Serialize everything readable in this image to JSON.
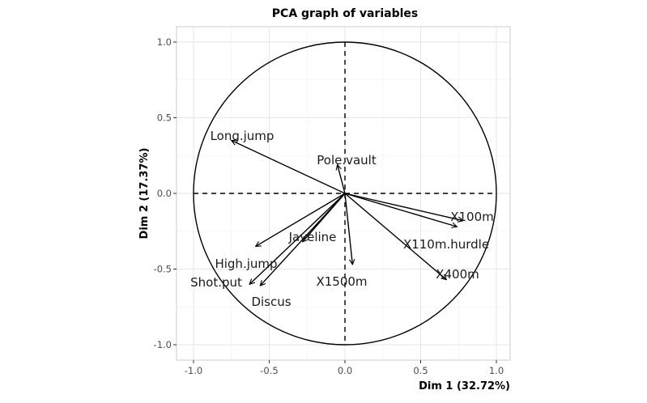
{
  "chart_data": {
    "type": "scatter",
    "title": "PCA graph of variables",
    "xlabel": "Dim 1 (32.72%)",
    "ylabel": "Dim 2 (17.37%)",
    "xlim": [
      -1.1,
      1.1
    ],
    "ylim": [
      -1.1,
      1.1
    ],
    "x_ticks": [
      "-1.0",
      "-0.5",
      "0.0",
      "0.5",
      "1.0"
    ],
    "y_ticks": [
      "1.0",
      "0.5",
      "0.0",
      "-0.5",
      "-1.0"
    ],
    "grid": true,
    "unit_circle": true,
    "variables": [
      {
        "name": "Long.jump",
        "x": -0.75,
        "y": 0.35
      },
      {
        "name": "Pole.vault",
        "x": -0.05,
        "y": 0.19
      },
      {
        "name": "X100m",
        "x": 0.78,
        "y": -0.18
      },
      {
        "name": "X110m.hurdle",
        "x": 0.74,
        "y": -0.22
      },
      {
        "name": "X400m",
        "x": 0.67,
        "y": -0.57
      },
      {
        "name": "X1500m",
        "x": 0.05,
        "y": -0.47
      },
      {
        "name": "Javeline",
        "x": -0.28,
        "y": -0.32
      },
      {
        "name": "High.jump",
        "x": -0.59,
        "y": -0.35
      },
      {
        "name": "Shot.put",
        "x": -0.63,
        "y": -0.6
      },
      {
        "name": "Discus",
        "x": -0.56,
        "y": -0.61
      }
    ]
  }
}
